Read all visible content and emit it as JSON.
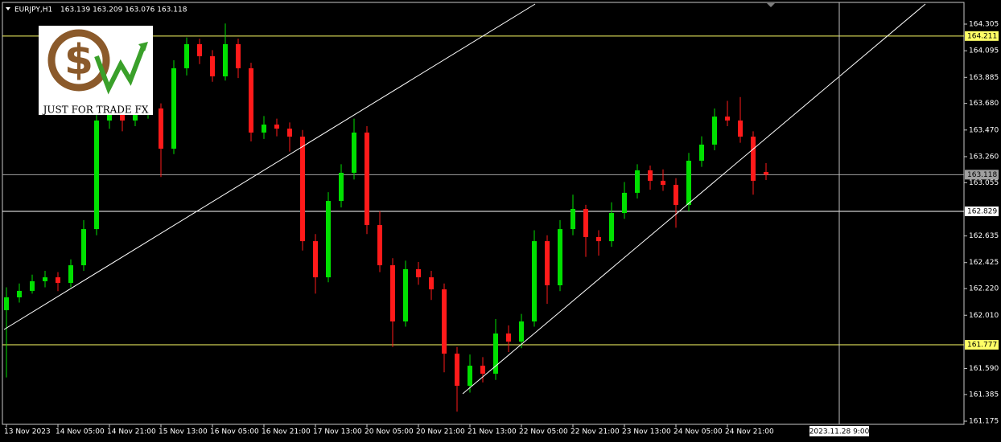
{
  "chart_data": {
    "type": "candlestick",
    "title": "EURJPY,H1",
    "quote": "163.139 163.209 163.076 163.118",
    "logo_text": "JUST FOR TRADE FX",
    "crosshair_label": "2023.11.28 9:00",
    "up_color": "#00e000",
    "down_color": "#ff1a1a",
    "ylim": [
      161.15,
      164.476
    ],
    "yticks": [
      164.305,
      164.095,
      163.885,
      {
        "value": 163.68,
        "label": "163.680"
      },
      {
        "value": 163.47,
        "label": "163.470"
      },
      {
        "value": 163.26,
        "label": "163.260"
      },
      163.055,
      162.635,
      162.425,
      {
        "value": 162.22,
        "label": "162.220"
      },
      {
        "value": 162.01,
        "label": "162.010"
      },
      {
        "value": 161.59,
        "label": "161.590"
      },
      161.385,
      161.175
    ],
    "levels": [
      {
        "value": 164.211,
        "color": "#ffff66"
      },
      {
        "value": 163.118,
        "color": "#a0a0a0"
      },
      {
        "value": 162.829,
        "color": "#ffffff"
      },
      {
        "value": 161.777,
        "color": "#ffff66"
      }
    ],
    "categories": [
      "13 Nov 2023",
      null,
      null,
      null,
      "14 Nov 05:00",
      null,
      null,
      null,
      "14 Nov 21:00",
      null,
      null,
      null,
      "15 Nov 13:00",
      null,
      null,
      null,
      "16 Nov 05:00",
      null,
      null,
      null,
      "16 Nov 21:00",
      null,
      null,
      null,
      "17 Nov 13:00",
      null,
      null,
      null,
      "20 Nov 05:00",
      null,
      null,
      null,
      "20 Nov 21:00",
      null,
      null,
      null,
      "21 Nov 13:00",
      null,
      null,
      null,
      "22 Nov 05:00",
      null,
      null,
      null,
      "22 Nov 21:00",
      null,
      null,
      null,
      "23 Nov 13:00",
      null,
      null,
      null,
      "24 Nov 05:00",
      null,
      null,
      null,
      "24 Nov 21:00",
      null,
      null,
      null
    ],
    "open": [
      162.05,
      162.151,
      162.202,
      162.278,
      162.309,
      162.265,
      162.404,
      162.689,
      163.545,
      163.608,
      163.545,
      163.608,
      163.64,
      163.323,
      163.957,
      164.147,
      164.052,
      163.893,
      164.147,
      163.957,
      163.45,
      163.513,
      163.481,
      163.418,
      162.594,
      162.309,
      162.911,
      163.133,
      163.45,
      162.721,
      162.404,
      161.961,
      162.373,
      162.309,
      162.214,
      161.707,
      161.454,
      161.612,
      161.549,
      161.866,
      161.802,
      161.961,
      162.594,
      162.246,
      162.689,
      162.848,
      162.626,
      162.594,
      162.816,
      162.975,
      163.152,
      163.07,
      163.038,
      162.879,
      163.228,
      163.355,
      163.576,
      163.545,
      163.418,
      163.139
    ],
    "high": [
      162.23,
      162.26,
      162.33,
      162.36,
      162.35,
      162.45,
      162.76,
      163.62,
      163.7,
      163.66,
      163.68,
      163.72,
      163.68,
      164.02,
      164.2,
      164.19,
      164.1,
      164.31,
      164.19,
      164.0,
      163.58,
      163.56,
      163.53,
      163.47,
      162.65,
      162.98,
      163.2,
      163.56,
      163.5,
      162.83,
      162.46,
      162.44,
      162.43,
      162.36,
      162.26,
      161.76,
      161.7,
      161.68,
      161.98,
      161.93,
      162.02,
      162.68,
      162.64,
      162.76,
      162.96,
      162.88,
      162.68,
      162.9,
      163.06,
      163.2,
      163.19,
      163.16,
      163.09,
      163.29,
      163.42,
      163.64,
      163.7,
      163.73,
      163.46,
      163.209
    ],
    "low": [
      161.52,
      162.11,
      162.18,
      162.23,
      162.2,
      162.23,
      162.36,
      162.64,
      163.48,
      163.46,
      163.5,
      163.56,
      163.1,
      163.28,
      163.9,
      163.99,
      163.85,
      163.86,
      163.88,
      163.38,
      163.4,
      163.42,
      163.3,
      162.52,
      162.18,
      162.27,
      162.86,
      163.08,
      162.65,
      162.35,
      161.76,
      161.92,
      162.25,
      162.13,
      161.56,
      161.25,
      161.4,
      161.48,
      161.5,
      161.72,
      161.75,
      161.92,
      162.1,
      162.2,
      162.64,
      162.47,
      162.48,
      162.55,
      162.77,
      162.93,
      163.0,
      162.99,
      162.7,
      162.83,
      163.18,
      163.31,
      163.5,
      163.37,
      162.96,
      163.076
    ],
    "close": [
      162.151,
      162.202,
      162.278,
      162.309,
      162.265,
      162.404,
      162.689,
      163.545,
      163.608,
      163.545,
      163.608,
      163.64,
      163.323,
      163.957,
      164.147,
      164.052,
      163.893,
      164.147,
      163.957,
      163.45,
      163.513,
      163.481,
      163.418,
      162.594,
      162.309,
      162.911,
      163.133,
      163.45,
      162.721,
      162.404,
      161.961,
      162.373,
      162.309,
      162.214,
      161.707,
      161.454,
      161.612,
      161.549,
      161.866,
      161.802,
      161.961,
      162.594,
      162.246,
      162.689,
      162.848,
      162.626,
      162.594,
      162.816,
      162.975,
      163.152,
      163.07,
      163.038,
      162.879,
      163.228,
      163.355,
      163.576,
      163.545,
      163.418,
      163.07,
      163.118
    ]
  }
}
